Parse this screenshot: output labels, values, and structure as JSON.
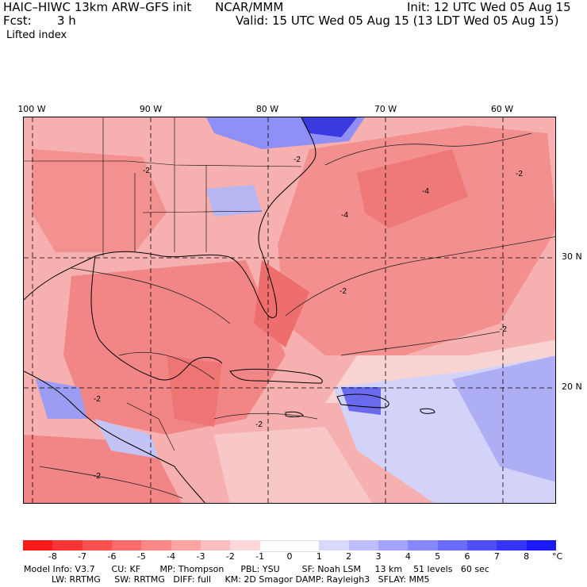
{
  "header": {
    "model": "HAIC–HIWC 13km ARW–GFS init",
    "org": "NCAR/MMM",
    "init": "Init: 12 UTC Wed 05 Aug 15",
    "fcst_label": "Fcst:",
    "fcst_value": "3 h",
    "valid": "Valid: 15 UTC Wed 05 Aug 15 (13 LDT Wed 05 Aug 15)",
    "field": "Lifted index"
  },
  "map": {
    "lon_labels": [
      "100 W",
      "90 W",
      "80 W",
      "70 W",
      "60 W"
    ],
    "lat_labels": [
      "30 N",
      "20 N"
    ],
    "contour_labels": [
      "-2",
      "-2",
      "-4",
      "-4",
      "-2",
      "-2",
      "-2",
      "-2",
      "-2",
      "-2"
    ]
  },
  "colorbar": {
    "levels": [
      "-8",
      "-7",
      "-6",
      "-5",
      "-4",
      "-3",
      "-2",
      "-1",
      "0",
      "1",
      "2",
      "3",
      "4",
      "5",
      "6",
      "7",
      "8"
    ],
    "unit": "°C",
    "colors": [
      "#ff1a1a",
      "#ff3535",
      "#ff4f4f",
      "#ff6b6b",
      "#ff8787",
      "#ffa3a3",
      "#ffbdbd",
      "#ffd9d9",
      "#ffffff",
      "#ffffff",
      "#d9d9ff",
      "#bdbdff",
      "#a3a3ff",
      "#8787ff",
      "#6b6bff",
      "#4f4fff",
      "#3535ff",
      "#1a1aff"
    ]
  },
  "footer": {
    "line1": "Model Info: V3.7      CU: KF       MP: Thompson      PBL: YSU        SF: Noah LSM     13 km    51 levels   60 sec",
    "line2": "          LW: RRTMG     SW: RRTMG   DIFF: full     KM: 2D Smagor DAMP: Rayleigh3   SFLAY: MM5"
  }
}
